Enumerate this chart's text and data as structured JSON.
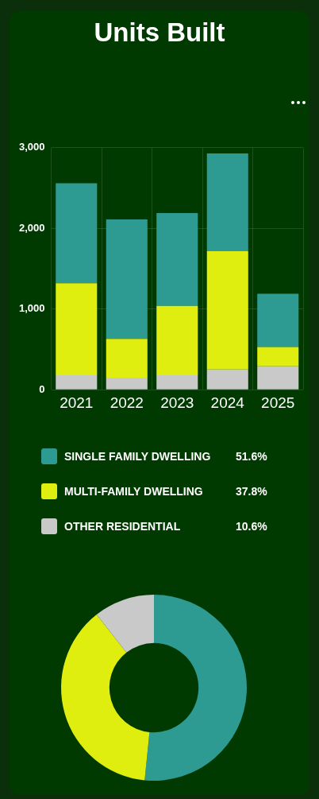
{
  "chart_data": [
    {
      "type": "bar",
      "title": "Units Built",
      "categories": [
        "2021",
        "2022",
        "2023",
        "2024",
        "2025"
      ],
      "stacked": true,
      "series": [
        {
          "color": "#c9c9c9",
          "values": [
            180,
            150,
            180,
            250,
            290
          ]
        },
        {
          "color": "#dfee0e",
          "values": [
            1140,
            480,
            860,
            1470,
            240
          ]
        },
        {
          "color": "#2e9b93",
          "values": [
            1240,
            1480,
            1150,
            1210,
            660
          ]
        }
      ],
      "ylim": [
        0,
        3000
      ],
      "yticks": [
        0,
        {
          "value": 1000,
          "label": "1,000"
        },
        {
          "value": 2000,
          "label": "2,000"
        },
        {
          "value": 3000,
          "label": "3,000"
        }
      ],
      "grid": true,
      "legend": false
    },
    {
      "type": "donut",
      "categories": [
        "SINGLE FAMILY DWELLING",
        "MULTI-FAMILY DWELLING",
        "OTHER RESIDENTIAL"
      ],
      "values": [
        51.6,
        37.8,
        10.6
      ],
      "colors": [
        "#2e9b93",
        "#dfee0e",
        "#c9c9c9"
      ],
      "legend": "top",
      "value_labels": [
        "51.6%",
        "37.8%",
        "10.6%"
      ]
    }
  ]
}
